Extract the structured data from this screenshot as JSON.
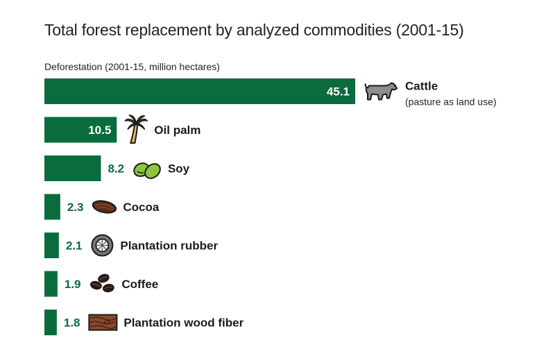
{
  "chart_data": {
    "type": "bar",
    "orientation": "horizontal",
    "title": "Total forest replacement by analyzed commodities (2001-15)",
    "subtitle": "Deforestation (2001-15, million hectares)",
    "categories": [
      "Cattle",
      "Oil palm",
      "Soy",
      "Cocoa",
      "Plantation rubber",
      "Coffee",
      "Plantation wood fiber"
    ],
    "notes": [
      "(pasture as land use)",
      "",
      "",
      "",
      "",
      "",
      ""
    ],
    "values": [
      45.1,
      10.5,
      8.2,
      2.3,
      2.1,
      1.9,
      1.8
    ],
    "value_labels": [
      "45.1",
      "10.5",
      "8.2",
      "2.3",
      "2.1",
      "1.9",
      "1.8"
    ],
    "icons": [
      "cow-icon",
      "palm-tree-icon",
      "soybean-icon",
      "cocoa-pod-icon",
      "rubber-tire-icon",
      "coffee-beans-icon",
      "wood-grain-icon"
    ],
    "xlim": [
      0,
      45.1
    ],
    "grid": false,
    "legend": "none",
    "bar_color": "#0a6b3d",
    "label_color": "#0a6b3d"
  }
}
